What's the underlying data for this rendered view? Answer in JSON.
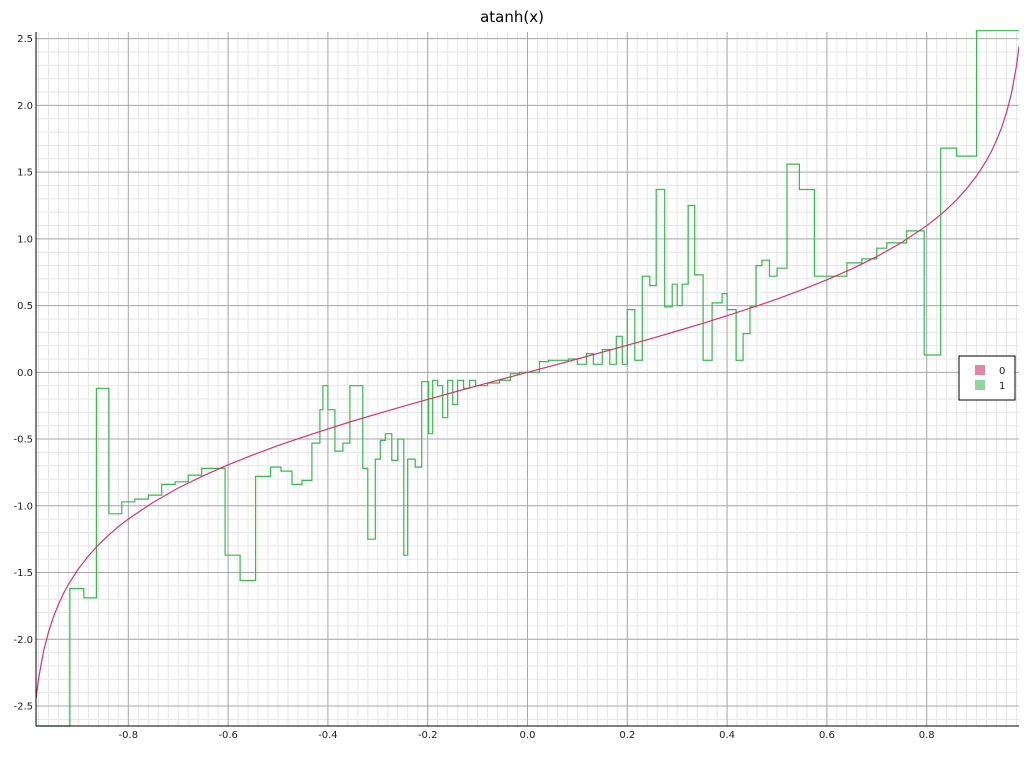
{
  "chart_data": {
    "type": "line",
    "title": "atanh(x)",
    "xlabel": "",
    "ylabel": "",
    "xlim": [
      -0.985,
      0.985
    ],
    "ylim": [
      -2.65,
      2.55
    ],
    "grid": true,
    "legend_position": "right",
    "x_ticks": [
      "-0.8",
      "-0.6",
      "-0.4",
      "-0.2",
      "0.0",
      "0.2",
      "0.4",
      "0.6",
      "0.8"
    ],
    "x_tick_values": [
      -0.8,
      -0.6,
      -0.4,
      -0.2,
      0.0,
      0.2,
      0.4,
      0.6,
      0.8
    ],
    "y_ticks": [
      "-2.5",
      "-2.0",
      "-1.5",
      "-1.0",
      "-0.5",
      "0.0",
      "0.5",
      "1.0",
      "1.5",
      "2.0",
      "2.5"
    ],
    "y_tick_values": [
      -2.5,
      -2.0,
      -1.5,
      -1.0,
      -0.5,
      0.0,
      0.5,
      1.0,
      1.5,
      2.0,
      2.5
    ],
    "series": [
      {
        "name": "0",
        "color": "#e0306a",
        "kind": "line",
        "x": [
          -0.985,
          -0.98,
          -0.97,
          -0.96,
          -0.95,
          -0.94,
          -0.93,
          -0.92,
          -0.9,
          -0.88,
          -0.86,
          -0.84,
          -0.82,
          -0.8,
          -0.75,
          -0.7,
          -0.65,
          -0.6,
          -0.55,
          -0.5,
          -0.45,
          -0.4,
          -0.35,
          -0.3,
          -0.25,
          -0.2,
          -0.15,
          -0.1,
          -0.05,
          0.0,
          0.05,
          0.1,
          0.15,
          0.2,
          0.25,
          0.3,
          0.35,
          0.4,
          0.45,
          0.5,
          0.55,
          0.6,
          0.65,
          0.7,
          0.75,
          0.8,
          0.82,
          0.84,
          0.86,
          0.88,
          0.9,
          0.92,
          0.93,
          0.94,
          0.95,
          0.96,
          0.97,
          0.98,
          0.985
        ],
        "y": [
          -2.443,
          -2.298,
          -2.092,
          -1.946,
          -1.832,
          -1.738,
          -1.658,
          -1.589,
          -1.472,
          -1.376,
          -1.293,
          -1.221,
          -1.157,
          -1.099,
          -0.973,
          -0.867,
          -0.775,
          -0.693,
          -0.618,
          -0.549,
          -0.485,
          -0.424,
          -0.365,
          -0.31,
          -0.255,
          -0.203,
          -0.151,
          -0.1,
          -0.05,
          0.0,
          0.05,
          0.1,
          0.151,
          0.203,
          0.255,
          0.31,
          0.365,
          0.424,
          0.485,
          0.549,
          0.618,
          0.693,
          0.775,
          0.867,
          0.973,
          1.099,
          1.157,
          1.221,
          1.293,
          1.376,
          1.472,
          1.589,
          1.658,
          1.738,
          1.832,
          1.946,
          2.092,
          2.298,
          2.443
        ]
      },
      {
        "name": "1",
        "color": "#33bb4d",
        "kind": "step",
        "x": [
          -0.985,
          -0.917,
          -0.889,
          -0.864,
          -0.839,
          -0.813,
          -0.787,
          -0.76,
          -0.733,
          -0.706,
          -0.68,
          -0.653,
          -0.606,
          -0.576,
          -0.545,
          -0.515,
          -0.494,
          -0.472,
          -0.452,
          -0.432,
          -0.416,
          -0.41,
          -0.4,
          -0.386,
          -0.37,
          -0.356,
          -0.33,
          -0.32,
          -0.305,
          -0.295,
          -0.285,
          -0.272,
          -0.26,
          -0.248,
          -0.24,
          -0.225,
          -0.212,
          -0.198,
          -0.19,
          -0.18,
          -0.17,
          -0.16,
          -0.15,
          -0.14,
          -0.128,
          -0.116,
          -0.104,
          -0.08,
          -0.056,
          -0.034,
          -0.016,
          0.0,
          0.024,
          0.042,
          0.06,
          0.082,
          0.1,
          0.118,
          0.132,
          0.15,
          0.165,
          0.178,
          0.19,
          0.2,
          0.215,
          0.23,
          0.245,
          0.258,
          0.275,
          0.29,
          0.3,
          0.31,
          0.322,
          0.335,
          0.352,
          0.37,
          0.39,
          0.4,
          0.418,
          0.432,
          0.446,
          0.458,
          0.47,
          0.485,
          0.5,
          0.52,
          0.545,
          0.575,
          0.605,
          0.64,
          0.67,
          0.7,
          0.72,
          0.74,
          0.76,
          0.795,
          0.828,
          0.86,
          0.9,
          0.922,
          0.94,
          0.985
        ],
        "y": [
          -2.65,
          -1.62,
          -1.69,
          -0.12,
          -1.06,
          -0.97,
          -0.95,
          -0.92,
          -0.84,
          -0.82,
          -0.77,
          -0.72,
          -1.37,
          -1.56,
          -0.78,
          -0.71,
          -0.74,
          -0.84,
          -0.81,
          -0.53,
          -0.28,
          -0.1,
          -0.28,
          -0.59,
          -0.53,
          -0.1,
          -0.72,
          -1.25,
          -0.65,
          -0.51,
          -0.46,
          -0.66,
          -0.5,
          -1.37,
          -0.65,
          -0.71,
          -0.07,
          -0.46,
          -0.06,
          -0.1,
          -0.34,
          -0.06,
          -0.24,
          -0.06,
          -0.12,
          -0.06,
          -0.1,
          -0.08,
          -0.06,
          -0.01,
          0.0,
          0.0,
          0.08,
          0.09,
          0.09,
          0.1,
          0.06,
          0.14,
          0.06,
          0.17,
          0.06,
          0.27,
          0.06,
          0.47,
          0.09,
          0.72,
          0.65,
          1.37,
          0.49,
          0.66,
          0.5,
          0.66,
          1.25,
          0.73,
          0.09,
          0.52,
          0.59,
          0.47,
          0.09,
          0.29,
          0.49,
          0.8,
          0.84,
          0.72,
          0.78,
          1.56,
          1.37,
          0.72,
          0.72,
          0.82,
          0.85,
          0.93,
          0.97,
          0.97,
          1.06,
          0.13,
          1.68,
          1.62,
          2.56,
          2.56,
          2.56,
          2.56
        ]
      }
    ]
  }
}
